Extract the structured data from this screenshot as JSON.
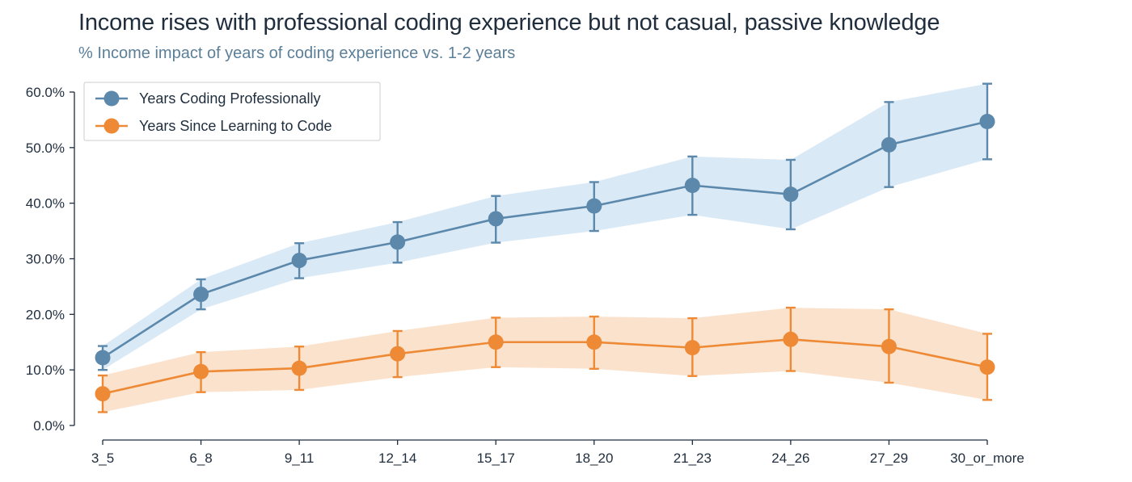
{
  "chart_data": {
    "type": "line",
    "title": "Income rises with professional coding experience but not casual, passive knowledge",
    "subtitle": "% Income impact of years of coding experience vs. 1-2 years",
    "xlabel": "",
    "ylabel": "",
    "categories": [
      "3_5",
      "6_8",
      "9_11",
      "12_14",
      "15_17",
      "18_20",
      "21_23",
      "24_26",
      "27_29",
      "30_or_more"
    ],
    "ylim": [
      0,
      60
    ],
    "yticks": [
      "0.0%",
      "10.0%",
      "20.0%",
      "30.0%",
      "40.0%",
      "50.0%",
      "60.0%"
    ],
    "grid": false,
    "legend_position": "top-left",
    "series": [
      {
        "name": "Years Coding Professionally",
        "color": "#5b88ab",
        "band_color": "#d6e7f5",
        "values": [
          12.2,
          23.6,
          29.7,
          33.0,
          37.2,
          39.5,
          43.2,
          41.6,
          50.5,
          54.7
        ],
        "lower": [
          10.0,
          20.9,
          26.5,
          29.3,
          32.9,
          35.0,
          37.9,
          35.3,
          42.9,
          47.9
        ],
        "upper": [
          14.3,
          26.3,
          32.8,
          36.6,
          41.3,
          43.8,
          48.4,
          47.8,
          58.2,
          61.5
        ]
      },
      {
        "name": "Years Since Learning to Code",
        "color": "#ee8a35",
        "band_color": "#fbdfc8",
        "values": [
          5.7,
          9.7,
          10.3,
          12.9,
          15.0,
          15.0,
          14.0,
          15.5,
          14.2,
          10.5
        ],
        "lower": [
          2.4,
          6.0,
          6.4,
          8.7,
          10.5,
          10.2,
          8.9,
          9.8,
          7.7,
          4.6
        ],
        "upper": [
          9.0,
          13.2,
          14.2,
          17.0,
          19.4,
          19.6,
          19.3,
          21.2,
          20.9,
          16.5
        ]
      }
    ]
  }
}
